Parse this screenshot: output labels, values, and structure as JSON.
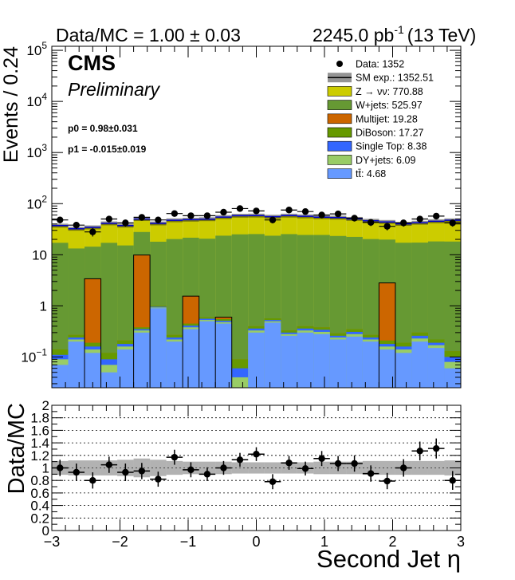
{
  "header": {
    "ratio_text": "Data/MC = 1.00 ± 0.03",
    "lumi_text": "2245.0 pb",
    "lumi_sup": "-1",
    "energy_text": "(13 TeV)"
  },
  "labels": {
    "cms": "CMS",
    "preliminary": "Preliminary",
    "p0": "p0 = 0.98±0.031",
    "p1": "p1 = -0.015±0.019"
  },
  "chart_data": [
    {
      "type": "area",
      "stacked": true,
      "ylabel": "Events / 0.24",
      "yscale": "log",
      "ylim": [
        0.025,
        120000
      ],
      "xlim": [
        -3,
        3
      ],
      "y_ticks": [
        {
          "v": 0.1,
          "base": "10",
          "exp": "−1"
        },
        {
          "v": 1,
          "label": "1"
        },
        {
          "v": 10,
          "label": "10"
        },
        {
          "v": 100,
          "base": "10",
          "exp": "2"
        },
        {
          "v": 1000,
          "base": "10",
          "exp": "3"
        },
        {
          "v": 10000,
          "base": "10",
          "exp": "4"
        },
        {
          "v": 100000,
          "base": "10",
          "exp": "5"
        }
      ],
      "bin_edges": [
        -3,
        -2.76,
        -2.52,
        -2.28,
        -2.04,
        -1.8,
        -1.56,
        -1.32,
        -1.08,
        -0.84,
        -0.6,
        -0.36,
        -0.12,
        0.12,
        0.36,
        0.6,
        0.84,
        1.08,
        1.32,
        1.56,
        1.8,
        2.04,
        2.28,
        2.52,
        2.76,
        3
      ],
      "series": [
        {
          "name": "tt̄: 4.68",
          "color": "#6699ff",
          "values": [
            0.07,
            0.2,
            0.12,
            0.05,
            0.14,
            0.3,
            0.9,
            0.2,
            0.35,
            0.5,
            0.45,
            0.02,
            0.3,
            0.47,
            0.26,
            0.3,
            0.28,
            0.22,
            0.25,
            0.2,
            0.14,
            0.12,
            0.2,
            0.15,
            0.06
          ]
        },
        {
          "name": "DY+jets: 6.09",
          "color": "#99cc66",
          "values": [
            0.02,
            0.02,
            0.02,
            0.02,
            0.02,
            0.03,
            0.03,
            0.02,
            0.03,
            0.03,
            0.03,
            0.02,
            0.03,
            0.03,
            0.02,
            0.03,
            0.03,
            0.02,
            0.03,
            0.02,
            0.02,
            0.02,
            0.03,
            0.02,
            0.02
          ]
        },
        {
          "name": "Single Top: 8.38",
          "color": "#3366ff",
          "values": [
            0.02,
            0.02,
            0.02,
            0.02,
            0.02,
            0.02,
            0.03,
            0.02,
            0.03,
            0.03,
            0.03,
            0.02,
            0.03,
            0.03,
            0.02,
            0.03,
            0.03,
            0.02,
            0.03,
            0.02,
            0.02,
            0.02,
            0.03,
            0.02,
            0.02
          ]
        },
        {
          "name": "DiBoson: 17.27",
          "color": "#669900",
          "values": [
            0.03,
            0.03,
            0.03,
            0.03,
            0.03,
            0.03,
            0.04,
            0.03,
            0.04,
            0.04,
            0.04,
            0.03,
            0.04,
            0.04,
            0.03,
            0.04,
            0.04,
            0.03,
            0.04,
            0.03,
            0.03,
            0.03,
            0.04,
            0.03,
            0.03
          ]
        },
        {
          "name": "Multijet: 19.28",
          "color": "#cc6600",
          "values": [
            0,
            0,
            3.2,
            0,
            0,
            9.5,
            0,
            0,
            1.1,
            0,
            0.05,
            0,
            0,
            0,
            0,
            0,
            0,
            0,
            0,
            0,
            2.6,
            0,
            0,
            0,
            0
          ]
        },
        {
          "name": "W+jets: 525.97",
          "color": "#669933",
          "values": [
            17,
            13,
            11,
            17,
            15,
            18,
            17,
            20,
            20,
            20,
            23,
            25,
            25,
            23,
            25,
            24,
            24,
            23,
            22,
            20,
            17,
            17,
            17,
            18,
            18
          ]
        },
        {
          "name": "Z → νν: 770.88",
          "color": "#cccc00",
          "values": [
            20,
            19,
            20,
            24,
            22,
            22,
            23,
            27,
            27,
            29,
            31,
            33,
            33,
            32,
            33,
            32,
            30,
            30,
            28,
            26,
            24,
            23,
            25,
            27,
            29
          ]
        }
      ],
      "sm_exp_name": "SM exp.: 1352.51",
      "data_name": "Data: 1352",
      "data_values": [
        48,
        38,
        28,
        50,
        42,
        54,
        48,
        64,
        58,
        58,
        68,
        80,
        72,
        48,
        75,
        70,
        60,
        63,
        52,
        43,
        36,
        42,
        50,
        57,
        42
      ]
    },
    {
      "type": "scatter",
      "ylabel": "Data/MC",
      "xlabel": "Second Jet η",
      "ylim": [
        0,
        2
      ],
      "xlim": [
        -3,
        3
      ],
      "y_ticks": [
        {
          "v": 0,
          "label": "0"
        },
        {
          "v": 0.2,
          "label": "0.2"
        },
        {
          "v": 0.4,
          "label": "0.4"
        },
        {
          "v": 0.6,
          "label": "0.6"
        },
        {
          "v": 0.8,
          "label": "0.8"
        },
        {
          "v": 1,
          "label": "1"
        },
        {
          "v": 1.2,
          "label": "1.2"
        },
        {
          "v": 1.4,
          "label": "1.4"
        },
        {
          "v": 1.6,
          "label": "1.6"
        },
        {
          "v": 1.8,
          "label": "1.8"
        },
        {
          "v": 2,
          "label": "2"
        }
      ],
      "x_ticks": [
        {
          "v": -3,
          "label": "−3"
        },
        {
          "v": -2,
          "label": "−2"
        },
        {
          "v": -1,
          "label": "−1"
        },
        {
          "v": 0,
          "label": "0"
        },
        {
          "v": 1,
          "label": "1"
        },
        {
          "v": 2,
          "label": "2"
        },
        {
          "v": 3,
          "label": "3"
        }
      ],
      "grid": true,
      "ratio": [
        1.0,
        0.93,
        0.8,
        1.05,
        0.93,
        0.95,
        0.82,
        1.17,
        0.97,
        0.9,
        1.0,
        1.13,
        1.22,
        0.78,
        1.08,
        0.99,
        1.15,
        1.07,
        1.07,
        0.91,
        0.79,
        1.0,
        1.27,
        1.31,
        0.8
      ],
      "errors": [
        0.13,
        0.14,
        0.13,
        0.13,
        0.14,
        0.13,
        0.12,
        0.12,
        0.12,
        0.11,
        0.11,
        0.11,
        0.11,
        0.12,
        0.11,
        0.11,
        0.12,
        0.12,
        0.13,
        0.13,
        0.13,
        0.14,
        0.15,
        0.16,
        0.15
      ],
      "band": [
        0.11,
        0.12,
        0.12,
        0.12,
        0.13,
        0.15,
        0.13,
        0.11,
        0.1,
        0.1,
        0.1,
        0.09,
        0.09,
        0.09,
        0.09,
        0.09,
        0.1,
        0.1,
        0.1,
        0.11,
        0.11,
        0.11,
        0.11,
        0.11,
        0.12
      ]
    }
  ]
}
